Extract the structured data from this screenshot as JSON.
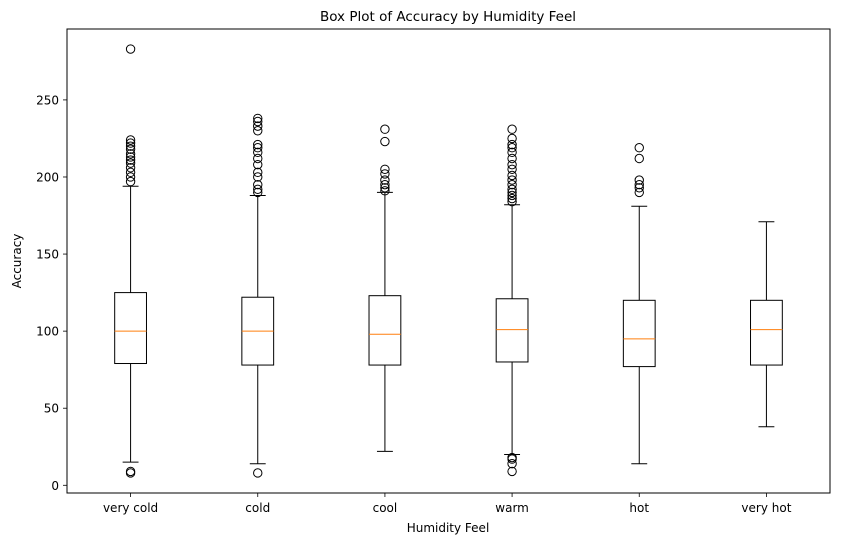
{
  "chart_data": {
    "type": "box",
    "title": "Box Plot of Accuracy by Humidity Feel",
    "xlabel": "Humidity Feel",
    "ylabel": "Accuracy",
    "ylim": [
      -5,
      296
    ],
    "yticks": [
      0,
      50,
      100,
      150,
      200,
      250
    ],
    "grid": false,
    "categories": [
      "very cold",
      "cold",
      "cool",
      "warm",
      "hot",
      "very hot"
    ],
    "boxes": [
      {
        "category": "very cold",
        "whisker_low": 15,
        "q1": 79,
        "median": 100,
        "q3": 125,
        "whisker_high": 194,
        "outliers": [
          8,
          9,
          197,
          200,
          203,
          206,
          209,
          211,
          213,
          215,
          218,
          220,
          222,
          224,
          283
        ]
      },
      {
        "category": "cold",
        "whisker_low": 14,
        "q1": 78,
        "median": 100,
        "q3": 122,
        "whisker_high": 188,
        "outliers": [
          8,
          190,
          192,
          195,
          200,
          203,
          208,
          212,
          216,
          219,
          221,
          230,
          233,
          236,
          238
        ]
      },
      {
        "category": "cool",
        "whisker_low": 22,
        "q1": 78,
        "median": 98,
        "q3": 123,
        "whisker_high": 190,
        "outliers": [
          191,
          193,
          195,
          198,
          202,
          205,
          223,
          231
        ]
      },
      {
        "category": "warm",
        "whisker_low": 20,
        "q1": 80,
        "median": 101,
        "q3": 121,
        "whisker_high": 182,
        "outliers": [
          9,
          14,
          17,
          18,
          184,
          186,
          188,
          190,
          192,
          195,
          198,
          201,
          205,
          208,
          212,
          216,
          219,
          221,
          225,
          231
        ]
      },
      {
        "category": "hot",
        "whisker_low": 14,
        "q1": 77,
        "median": 95,
        "q3": 120,
        "whisker_high": 181,
        "outliers": [
          190,
          193,
          195,
          198,
          212,
          219
        ]
      },
      {
        "category": "very hot",
        "whisker_low": 38,
        "q1": 78,
        "median": 101,
        "q3": 120,
        "whisker_high": 171,
        "outliers": []
      }
    ],
    "colors": {
      "box": "#000000",
      "median": "#ff7f0e",
      "outlier": "#000000"
    }
  }
}
